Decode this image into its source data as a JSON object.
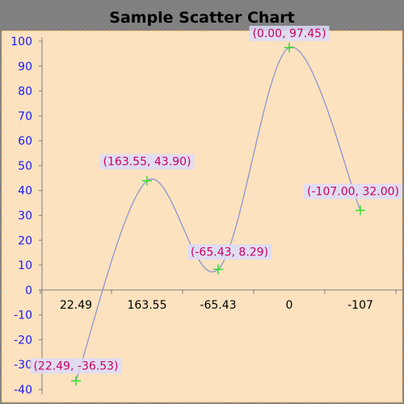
{
  "chart_data": {
    "type": "scatter",
    "title": "Sample Scatter Chart",
    "xlabel": "",
    "ylabel": "",
    "ylim": [
      -40,
      100
    ],
    "yticks": [
      100,
      90,
      80,
      70,
      60,
      50,
      40,
      30,
      20,
      10,
      0,
      -10,
      -20,
      -30,
      -40
    ],
    "categories": [
      "22.49",
      "163.55",
      "-65.43",
      "0",
      "-107"
    ],
    "points": [
      {
        "x": "22.49",
        "y": -36.53,
        "label": "(22.49, -36.53)"
      },
      {
        "x": "163.55",
        "y": 43.9,
        "label": "(163.55, 43.90)"
      },
      {
        "x": "-65.43",
        "y": 8.29,
        "label": "(-65.43, 8.29)"
      },
      {
        "x": "0",
        "y": 97.45,
        "label": "(0.00, 97.45)"
      },
      {
        "x": "-107",
        "y": 32.0,
        "label": "(-107.00, 32.00)"
      }
    ],
    "smooth_line": true,
    "grid": false,
    "legend": "none"
  },
  "colors": {
    "background": "#808080",
    "plot_fill": "#fce2bf",
    "plot_border": "#f2a04a",
    "curve": "#8c96cf",
    "marker": "#33dd33",
    "label_text": "#cc0066",
    "label_bg": "#dcdcf8",
    "y_tick_text": "#1a1aff",
    "x_tick_text": "#000000"
  }
}
